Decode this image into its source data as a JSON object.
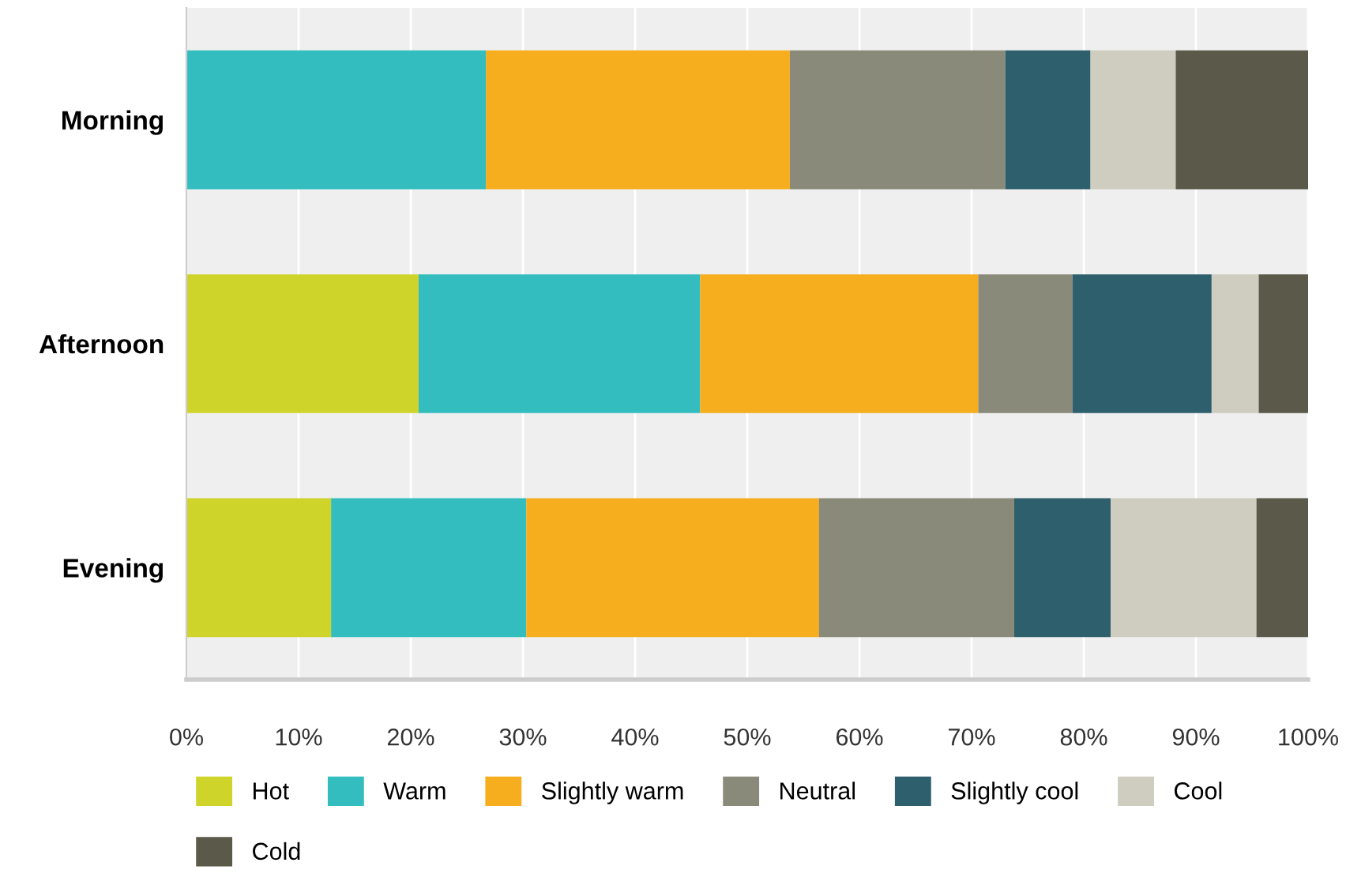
{
  "chart_data": {
    "type": "bar",
    "orientation": "horizontal",
    "stacked": true,
    "categories": [
      "Morning",
      "Afternoon",
      "Evening"
    ],
    "series": [
      {
        "name": "Hot",
        "color": "#cfd42a",
        "values": [
          0,
          20.7,
          12.9
        ]
      },
      {
        "name": "Warm",
        "color": "#33bdbf",
        "values": [
          26.7,
          25.1,
          17.4
        ]
      },
      {
        "name": "Slightly warm",
        "color": "#f6ae1f",
        "values": [
          27.1,
          24.8,
          26.1
        ]
      },
      {
        "name": "Neutral",
        "color": "#8a8a7a",
        "values": [
          19.2,
          8.4,
          17.4
        ]
      },
      {
        "name": "Slightly cool",
        "color": "#2e5f6c",
        "values": [
          7.6,
          12.4,
          8.6
        ]
      },
      {
        "name": "Cool",
        "color": "#cfcdbf",
        "values": [
          7.6,
          4.2,
          13.0
        ]
      },
      {
        "name": "Cold",
        "color": "#5b5949",
        "values": [
          11.8,
          4.4,
          4.6
        ]
      }
    ],
    "xlim": [
      0,
      100
    ],
    "xticks": [
      {
        "value": 0,
        "label": "0%"
      },
      {
        "value": 10,
        "label": "10%"
      },
      {
        "value": 20,
        "label": "20%"
      },
      {
        "value": 30,
        "label": "30%"
      },
      {
        "value": 40,
        "label": "40%"
      },
      {
        "value": 50,
        "label": "50%"
      },
      {
        "value": 60,
        "label": "60%"
      },
      {
        "value": 70,
        "label": "70%"
      },
      {
        "value": 80,
        "label": "80%"
      },
      {
        "value": 90,
        "label": "90%"
      },
      {
        "value": 100,
        "label": "100%"
      }
    ],
    "grid": "x",
    "legend": "bottom"
  }
}
